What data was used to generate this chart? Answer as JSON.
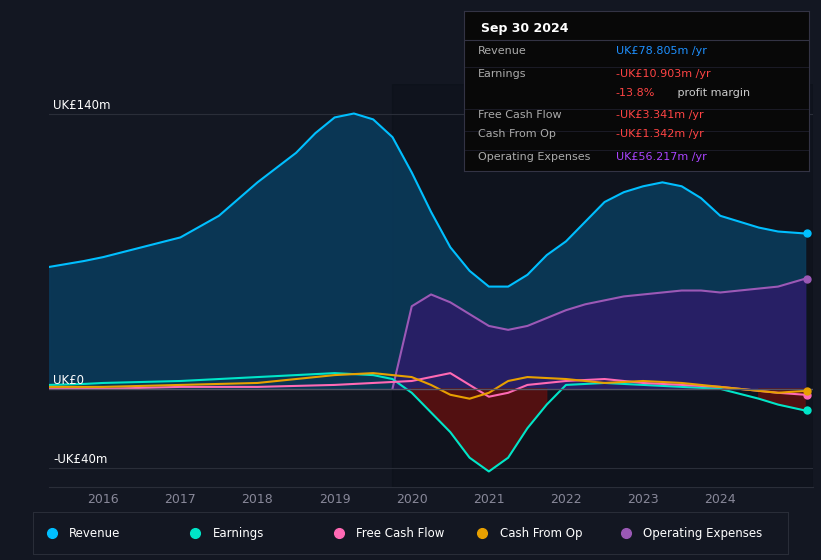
{
  "background_color": "#131722",
  "plot_bg_color": "#131722",
  "grid_color": "#2a2e39",
  "ylim": [
    -50,
    155
  ],
  "yticks": [
    -40,
    0,
    140
  ],
  "ytick_labels": [
    "-UK£40m",
    "UK£0",
    "UK£140m"
  ],
  "xlim_start": 2015.3,
  "xlim_end": 2025.2,
  "xticks": [
    2016,
    2017,
    2018,
    2019,
    2020,
    2021,
    2022,
    2023,
    2024
  ],
  "info_box": {
    "date": "Sep 30 2024",
    "rows": [
      {
        "label": "Revenue",
        "value": "UK£78.805m /yr",
        "color": "#1e90ff"
      },
      {
        "label": "Earnings",
        "value": "-UK£10.903m /yr",
        "color": "#ff4444"
      },
      {
        "label": "",
        "pct": "-13.8%",
        "pct_color": "#ff4444",
        "suffix": " profit margin",
        "suffix_color": "#cccccc"
      },
      {
        "label": "Free Cash Flow",
        "value": "-UK£3.341m /yr",
        "color": "#ff4444"
      },
      {
        "label": "Cash From Op",
        "value": "-UK£1.342m /yr",
        "color": "#ff4444"
      },
      {
        "label": "Operating Expenses",
        "value": "UK£56.217m /yr",
        "color": "#aa44ff"
      }
    ]
  },
  "series": {
    "revenue": {
      "color": "#00bfff",
      "fill_color": "#0a3a5a",
      "label": "Revenue",
      "x": [
        2015.3,
        2015.75,
        2016.0,
        2016.5,
        2017.0,
        2017.5,
        2018.0,
        2018.5,
        2018.75,
        2019.0,
        2019.25,
        2019.5,
        2019.75,
        2020.0,
        2020.25,
        2020.5,
        2020.75,
        2021.0,
        2021.25,
        2021.5,
        2021.75,
        2022.0,
        2022.25,
        2022.5,
        2022.75,
        2023.0,
        2023.25,
        2023.5,
        2023.75,
        2024.0,
        2024.25,
        2024.5,
        2024.75,
        2025.1
      ],
      "y": [
        62,
        65,
        67,
        72,
        77,
        88,
        105,
        120,
        130,
        138,
        140,
        137,
        128,
        110,
        90,
        72,
        60,
        52,
        52,
        58,
        68,
        75,
        85,
        95,
        100,
        103,
        105,
        103,
        97,
        88,
        85,
        82,
        80,
        79
      ]
    },
    "earnings": {
      "color": "#00e5c8",
      "fill_color": "#5a1010",
      "label": "Earnings",
      "x": [
        2015.3,
        2015.75,
        2016.0,
        2016.5,
        2017.0,
        2017.5,
        2018.0,
        2018.5,
        2019.0,
        2019.5,
        2019.75,
        2020.0,
        2020.25,
        2020.5,
        2020.75,
        2021.0,
        2021.25,
        2021.5,
        2021.75,
        2022.0,
        2022.5,
        2023.0,
        2023.5,
        2024.0,
        2024.5,
        2024.75,
        2025.1
      ],
      "y": [
        2,
        2.5,
        3,
        3.5,
        4,
        5,
        6,
        7,
        8,
        7,
        5,
        -2,
        -12,
        -22,
        -35,
        -42,
        -35,
        -20,
        -8,
        2,
        3,
        2,
        1,
        0,
        -5,
        -8,
        -11
      ]
    },
    "free_cash_flow": {
      "color": "#ff69b4",
      "label": "Free Cash Flow",
      "x": [
        2015.3,
        2016.0,
        2017.0,
        2018.0,
        2019.0,
        2019.5,
        2020.0,
        2020.25,
        2020.5,
        2020.75,
        2021.0,
        2021.25,
        2021.5,
        2022.0,
        2022.5,
        2023.0,
        2023.5,
        2024.0,
        2024.5,
        2024.75,
        2025.1
      ],
      "y": [
        0,
        0,
        1,
        1,
        2,
        3,
        4,
        6,
        8,
        2,
        -4,
        -2,
        2,
        4,
        5,
        3,
        2,
        1,
        -1,
        -2,
        -3
      ]
    },
    "cash_from_op": {
      "color": "#e8a000",
      "label": "Cash From Op",
      "x": [
        2015.3,
        2016.0,
        2017.0,
        2018.0,
        2018.5,
        2019.0,
        2019.5,
        2020.0,
        2020.25,
        2020.5,
        2020.75,
        2021.0,
        2021.25,
        2021.5,
        2022.0,
        2022.5,
        2023.0,
        2023.5,
        2024.0,
        2024.5,
        2024.75,
        2025.1
      ],
      "y": [
        1,
        1,
        2,
        3,
        5,
        7,
        8,
        6,
        2,
        -3,
        -5,
        -2,
        4,
        6,
        5,
        3,
        4,
        3,
        1,
        -1,
        -2,
        -1
      ]
    },
    "operating_expenses": {
      "color": "#9b59b6",
      "fill_color": "#2d1b69",
      "label": "Operating Expenses",
      "x": [
        2019.75,
        2020.0,
        2020.25,
        2020.5,
        2020.75,
        2021.0,
        2021.25,
        2021.5,
        2021.75,
        2022.0,
        2022.25,
        2022.5,
        2022.75,
        2023.0,
        2023.25,
        2023.5,
        2023.75,
        2024.0,
        2024.25,
        2024.5,
        2024.75,
        2025.1
      ],
      "y": [
        0,
        42,
        48,
        44,
        38,
        32,
        30,
        32,
        36,
        40,
        43,
        45,
        47,
        48,
        49,
        50,
        50,
        49,
        50,
        51,
        52,
        56
      ]
    }
  },
  "legend": [
    {
      "label": "Revenue",
      "color": "#00bfff"
    },
    {
      "label": "Earnings",
      "color": "#00e5c8"
    },
    {
      "label": "Free Cash Flow",
      "color": "#ff69b4"
    },
    {
      "label": "Cash From Op",
      "color": "#e8a000"
    },
    {
      "label": "Operating Expenses",
      "color": "#9b59b6"
    }
  ],
  "shaded_region_start": 2019.75,
  "marker_series": [
    "revenue",
    "earnings",
    "operating_expenses",
    "free_cash_flow",
    "cash_from_op"
  ]
}
